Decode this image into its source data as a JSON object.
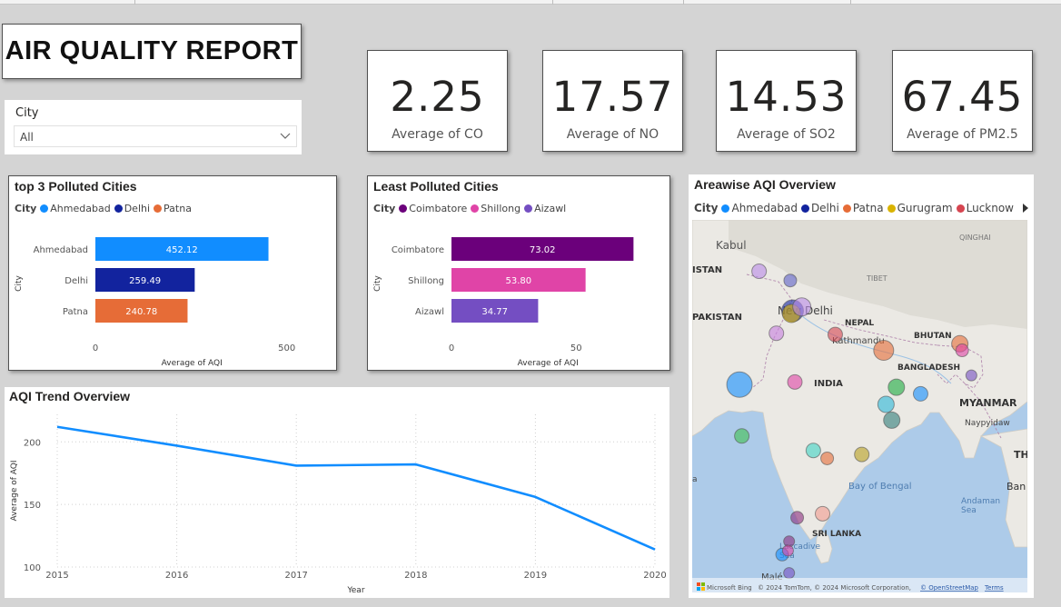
{
  "report_title": "AIR QUALITY REPORT",
  "slicer": {
    "label": "City",
    "value": "All"
  },
  "kpis": [
    {
      "value": "2.25",
      "caption": "Average of CO"
    },
    {
      "value": "17.57",
      "caption": "Average of NO"
    },
    {
      "value": "14.53",
      "caption": "Average of SO2"
    },
    {
      "value": "67.45",
      "caption": "Average of PM2.5"
    }
  ],
  "top3": {
    "title": "top 3 Polluted Cities",
    "legend_label": "City",
    "legend": [
      {
        "name": "Ahmedabad",
        "color": "#118dff"
      },
      {
        "name": "Delhi",
        "color": "#12239e"
      },
      {
        "name": "Patna",
        "color": "#e66c37"
      }
    ]
  },
  "least": {
    "title": "Least Polluted Cities",
    "legend_label": "City",
    "legend": [
      {
        "name": "Coimbatore",
        "color": "#6b007b"
      },
      {
        "name": "Shillong",
        "color": "#e044a7"
      },
      {
        "name": "Aizawl",
        "color": "#744ec2"
      }
    ]
  },
  "trend": {
    "title": "AQI Trend Overview"
  },
  "map": {
    "title": "Areawise AQI Overview",
    "legend_label": "City",
    "legend": [
      {
        "name": "Ahmedabad",
        "color": "#118dff"
      },
      {
        "name": "Delhi",
        "color": "#12239e"
      },
      {
        "name": "Patna",
        "color": "#e66c37"
      },
      {
        "name": "Gurugram",
        "color": "#d9b300"
      },
      {
        "name": "Lucknow",
        "color": "#d64550"
      }
    ],
    "labels": {
      "kabul": "Kabul",
      "qinghai": "QINGHAI",
      "istan": "ISTAN",
      "tibet": "TIBET",
      "pakistan": "PAKISTAN",
      "new_delhi": "New Delhi",
      "nepal": "NEPAL",
      "kathmandu": "Kathmandu",
      "bhutan": "BHUTAN",
      "bangladesh": "BANGLADESH",
      "india": "INDIA",
      "myanmar": "MYANMAR",
      "naypyidaw": "Naypyidaw",
      "th": "TH",
      "bay_of_bengal": "Bay of Bengal",
      "ban": "Ban",
      "andaman_sea": "Andaman\nSea",
      "sri_lanka": "SRI LANKA",
      "laccadive_sea": "Laccadive\nSea",
      "male": "Malé",
      "a": "a"
    },
    "attribution": {
      "bing": "Microsoft Bing",
      "copyright": "© 2024 TomTom, © 2024 Microsoft Corporation,",
      "osm": "© OpenStreetMap",
      "terms": "Terms"
    }
  },
  "chart_data": [
    {
      "type": "bar",
      "title": "top 3 Polluted Cities",
      "categories": [
        "Ahmedabad",
        "Delhi",
        "Patna"
      ],
      "values": [
        452.12,
        259.49,
        240.78
      ],
      "value_labels": [
        "452.12",
        "259.49",
        "240.78"
      ],
      "colors": [
        "#118dff",
        "#12239e",
        "#e66c37"
      ],
      "xlabel": "Average of AQI",
      "ylabel": "City",
      "xticks": [
        0,
        500
      ],
      "xlim": [
        0,
        560
      ]
    },
    {
      "type": "bar",
      "title": "Least Polluted Cities",
      "categories": [
        "Coimbatore",
        "Shillong",
        "Aizawl"
      ],
      "values": [
        73.02,
        53.8,
        34.77
      ],
      "value_labels": [
        "73.02",
        "53.80",
        "34.77"
      ],
      "colors": [
        "#6b007b",
        "#e044a7",
        "#744ec2"
      ],
      "xlabel": "Average of AQI",
      "ylabel": "City",
      "xticks": [
        0,
        50
      ],
      "xlim": [
        0,
        86
      ]
    },
    {
      "type": "line",
      "title": "AQI Trend Overview",
      "x": [
        "2015",
        "2016",
        "2017",
        "2018",
        "2019",
        "2020"
      ],
      "values": [
        212,
        197,
        181,
        182,
        156,
        114
      ],
      "color": "#118dff",
      "xlabel": "Year",
      "ylabel": "Average of AQI",
      "yticks": [
        100,
        150,
        200
      ],
      "ylim": [
        100,
        222
      ],
      "grid": true
    },
    {
      "type": "scatter",
      "title": "Areawise AQI Overview",
      "note": "bubble map of city AQI averages",
      "bubbles": [
        {
          "lon": 74.3,
          "lat": 31.6,
          "size": 8,
          "color": "#b98ae8"
        },
        {
          "lon": 77.0,
          "lat": 30.9,
          "size": 7,
          "color": "#5b5fc7"
        },
        {
          "lon": 77.2,
          "lat": 28.6,
          "size": 12,
          "color": "#12239e"
        },
        {
          "lon": 77.1,
          "lat": 28.4,
          "size": 10,
          "color": "#d9b300"
        },
        {
          "lon": 78.0,
          "lat": 28.9,
          "size": 10,
          "color": "#b98ae8"
        },
        {
          "lon": 75.8,
          "lat": 26.9,
          "size": 8,
          "color": "#c77ee0"
        },
        {
          "lon": 80.9,
          "lat": 26.8,
          "size": 8,
          "color": "#d64550"
        },
        {
          "lon": 85.1,
          "lat": 25.6,
          "size": 11,
          "color": "#e66c37"
        },
        {
          "lon": 72.6,
          "lat": 23.0,
          "size": 14,
          "color": "#118dff"
        },
        {
          "lon": 77.4,
          "lat": 23.2,
          "size": 8,
          "color": "#e044a7"
        },
        {
          "lon": 86.2,
          "lat": 22.8,
          "size": 9,
          "color": "#1aab40"
        },
        {
          "lon": 85.3,
          "lat": 21.5,
          "size": 9,
          "color": "#2ab8d8"
        },
        {
          "lon": 85.8,
          "lat": 20.3,
          "size": 9,
          "color": "#2f7d7a"
        },
        {
          "lon": 88.3,
          "lat": 22.3,
          "size": 8,
          "color": "#118dff"
        },
        {
          "lon": 91.7,
          "lat": 26.1,
          "size": 9,
          "color": "#e66c37"
        },
        {
          "lon": 91.9,
          "lat": 25.6,
          "size": 7,
          "color": "#e044a7"
        },
        {
          "lon": 92.7,
          "lat": 23.7,
          "size": 6,
          "color": "#744ec2"
        },
        {
          "lon": 72.8,
          "lat": 19.1,
          "size": 8,
          "color": "#3fbf50"
        },
        {
          "lon": 79.0,
          "lat": 18.0,
          "size": 8,
          "color": "#3fd4c4"
        },
        {
          "lon": 80.2,
          "lat": 17.4,
          "size": 7,
          "color": "#e66c37"
        },
        {
          "lon": 83.2,
          "lat": 17.7,
          "size": 8,
          "color": "#b7a020"
        },
        {
          "lon": 77.6,
          "lat": 12.9,
          "size": 7,
          "color": "#8a2d7e"
        },
        {
          "lon": 79.8,
          "lat": 13.2,
          "size": 8,
          "color": "#f29b8f"
        },
        {
          "lon": 76.9,
          "lat": 11.1,
          "size": 6,
          "color": "#8a2d7e"
        },
        {
          "lon": 76.3,
          "lat": 10.1,
          "size": 7,
          "color": "#118dff"
        },
        {
          "lon": 76.8,
          "lat": 10.4,
          "size": 6,
          "color": "#e044a7"
        },
        {
          "lon": 76.9,
          "lat": 8.7,
          "size": 6,
          "color": "#744ec2"
        }
      ]
    }
  ]
}
